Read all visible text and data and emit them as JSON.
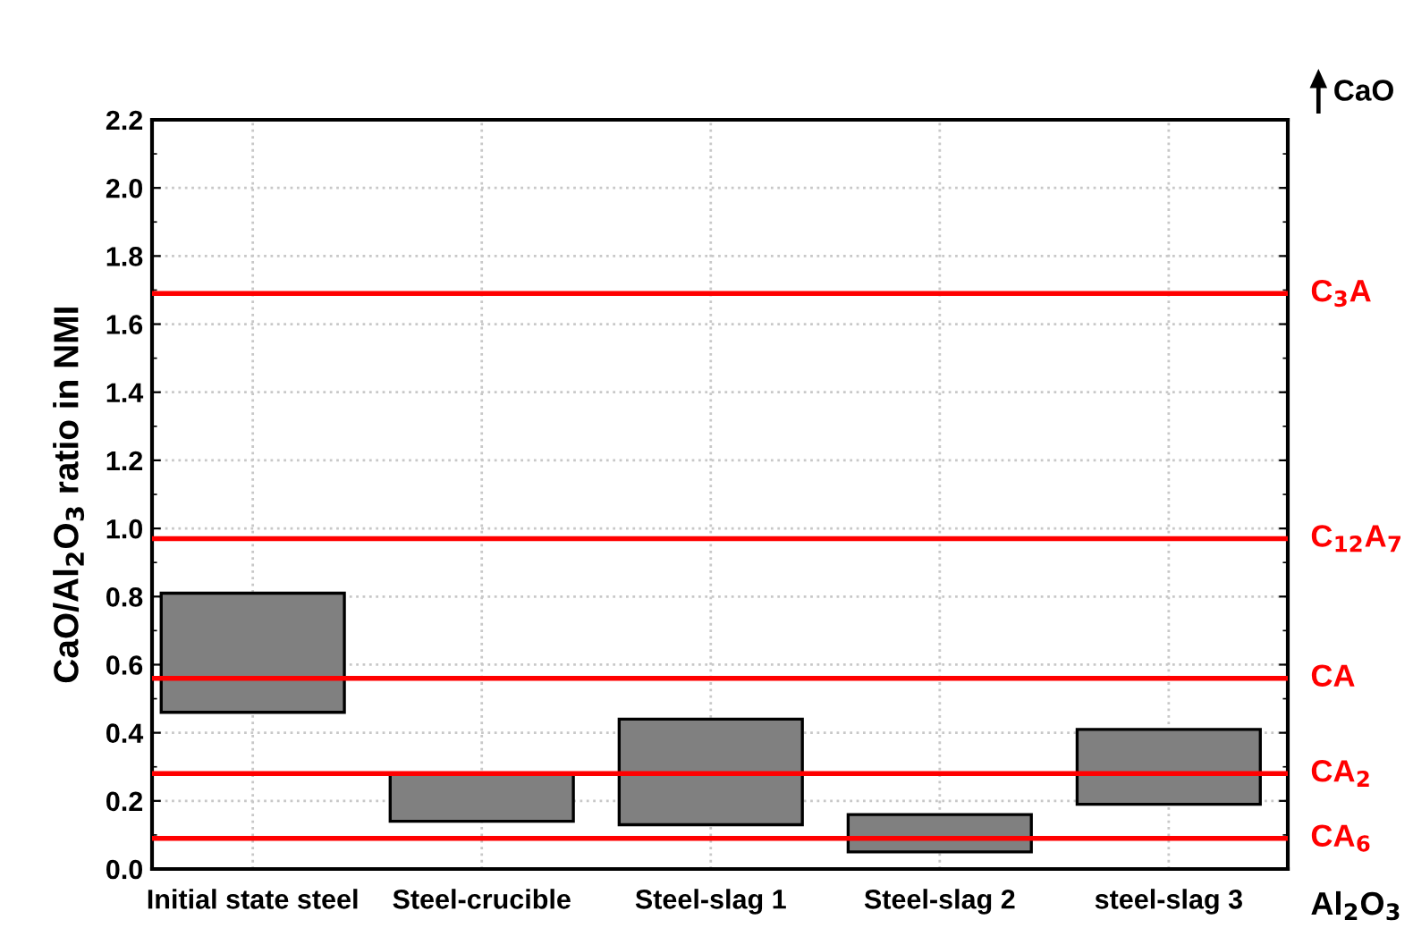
{
  "chart_data": {
    "type": "bar",
    "ylabel": "CaO/Al$_{2}$O$_{3}$ ratio in NMI",
    "categories": [
      "Initial state steel",
      "Steel-crucible",
      "Steel-slag 1",
      "Steel-slag 2",
      "steel-slag 3"
    ],
    "base": [
      0.46,
      0.14,
      0.13,
      0.05,
      0.19
    ],
    "values": [
      0.35,
      0.14,
      0.31,
      0.11,
      0.22
    ],
    "color": "#808080",
    "ylim": [
      0,
      2.2
    ],
    "yticks": [
      {
        "value": 0,
        "label": "0.0"
      },
      0.2,
      0.4,
      0.6,
      0.8,
      {
        "value": 1,
        "label": "1.0"
      },
      1.2,
      1.4,
      1.6,
      1.8,
      {
        "value": 2,
        "label": "2.0"
      },
      2.2
    ],
    "grid": true,
    "ref_lines": [
      {
        "axis": "y",
        "value": 1.69,
        "label": "C$_{3}$A",
        "color": "#ff0000"
      },
      {
        "axis": "y",
        "value": 0.97,
        "label": "C$_{12}$A$_{7}$",
        "color": "#ff0000"
      },
      {
        "axis": "y",
        "value": 0.56,
        "label": "CA",
        "color": "#ff0000"
      },
      {
        "axis": "y",
        "value": 0.28,
        "label": "CA$_{2}$",
        "color": "#ff0000"
      },
      {
        "axis": "y",
        "value": 0.09,
        "label": "CA$_{6}$",
        "color": "#ff0000"
      }
    ],
    "annotations": [
      "CaO",
      "Al$_{2}$O$_{3}$"
    ]
  }
}
